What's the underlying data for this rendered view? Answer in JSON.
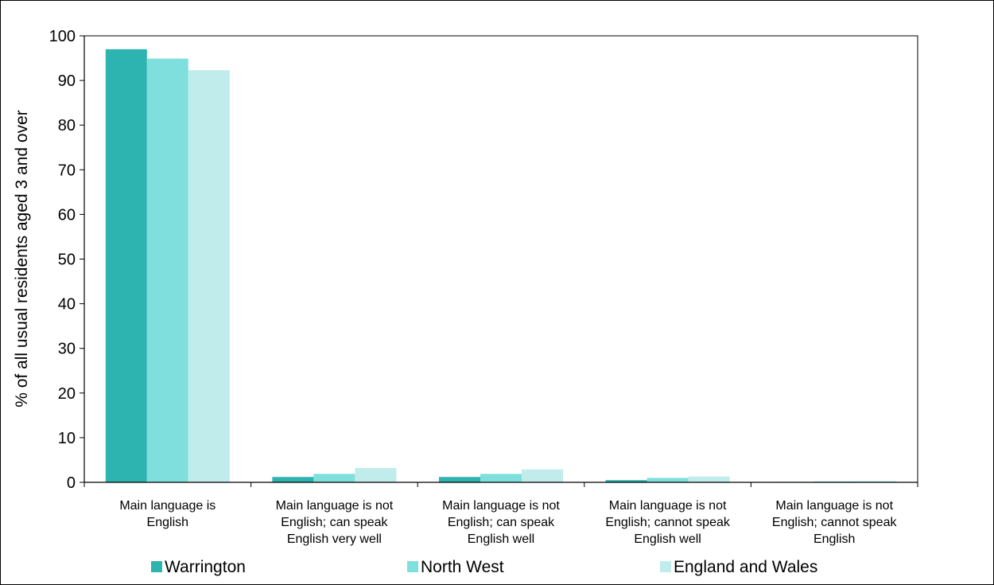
{
  "chart_data": {
    "type": "bar",
    "title": "",
    "xlabel": "",
    "ylabel": "% of all usual residents aged 3 and over",
    "ylim": [
      0,
      100
    ],
    "yticks": [
      0,
      10,
      20,
      30,
      40,
      50,
      60,
      70,
      80,
      90,
      100
    ],
    "categories": [
      [
        "Main language is",
        "English"
      ],
      [
        "Main language is not",
        "English; can speak",
        "English very well"
      ],
      [
        "Main language is not",
        "English; can speak",
        "English well"
      ],
      [
        "Main language is not",
        "English; cannot speak",
        "English well"
      ],
      [
        "Main language is not",
        "English; cannot speak",
        "English"
      ]
    ],
    "series": [
      {
        "name": "Warrington",
        "color": "#2db3b0",
        "values": [
          97.0,
          1.2,
          1.2,
          0.5,
          0.1
        ]
      },
      {
        "name": "North West",
        "color": "#7fdfdc",
        "values": [
          94.9,
          1.9,
          1.9,
          1.0,
          0.2
        ]
      },
      {
        "name": "England and Wales",
        "color": "#c0ecec",
        "values": [
          92.3,
          3.2,
          2.9,
          1.3,
          0.3
        ]
      }
    ],
    "legend_position": "bottom",
    "grid": false
  }
}
